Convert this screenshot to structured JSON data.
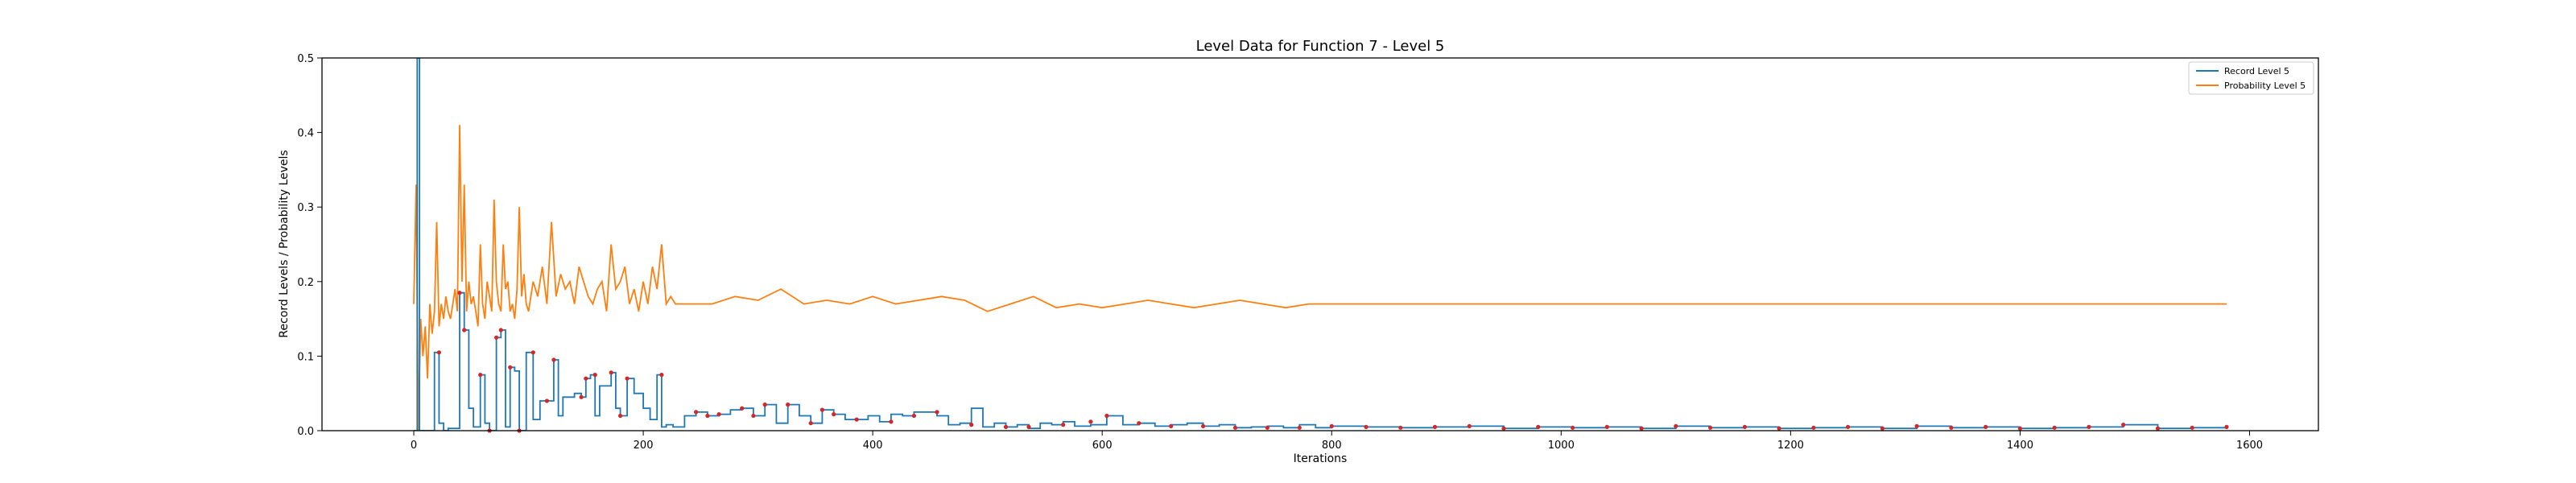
{
  "chart_data": {
    "type": "line",
    "title": "Level Data for Function 7 - Level 5",
    "xlabel": "Iterations",
    "ylabel": "Record Levels / Probability Levels",
    "xlim": [
      -80,
      1660
    ],
    "ylim": [
      0,
      0.5
    ],
    "xticks": [
      0,
      200,
      400,
      600,
      800,
      1000,
      1200,
      1400,
      1600
    ],
    "yticks": [
      0.0,
      0.1,
      0.2,
      0.3,
      0.4,
      0.5
    ],
    "xtick_labels": [
      "0",
      "200",
      "400",
      "600",
      "800",
      "1000",
      "1200",
      "1400",
      "1600"
    ],
    "ytick_labels": [
      "0.0",
      "0.1",
      "0.2",
      "0.3",
      "0.4",
      "0.5"
    ],
    "grid": false,
    "legend_position": "top-right",
    "legend": [
      "Record Level 5",
      "Probability Level 5"
    ],
    "colors": {
      "record": "#1f77b4",
      "probability": "#ff7f0e",
      "marker": "#d62728"
    },
    "series": [
      {
        "name": "Record Level 5",
        "color": "#1f77b4",
        "step": true,
        "x": [
          0,
          3,
          5,
          8,
          18,
          22,
          26,
          30,
          40,
          44,
          48,
          52,
          58,
          62,
          66,
          72,
          76,
          80,
          84,
          88,
          92,
          98,
          104,
          110,
          116,
          122,
          126,
          130,
          134,
          140,
          146,
          150,
          154,
          158,
          162,
          168,
          172,
          176,
          180,
          186,
          192,
          196,
          200,
          206,
          212,
          216,
          220,
          226,
          236,
          246,
          256,
          266,
          276,
          286,
          296,
          306,
          316,
          326,
          336,
          346,
          356,
          366,
          376,
          386,
          396,
          406,
          416,
          426,
          436,
          446,
          456,
          466,
          476,
          486,
          496,
          506,
          516,
          526,
          536,
          546,
          556,
          566,
          576,
          590,
          604,
          618,
          632,
          646,
          660,
          674,
          688,
          702,
          716,
          730,
          744,
          758,
          772,
          786,
          800,
          830,
          860,
          890,
          920,
          950,
          980,
          1010,
          1040,
          1070,
          1100,
          1130,
          1160,
          1190,
          1220,
          1250,
          1280,
          1310,
          1340,
          1370,
          1400,
          1430,
          1460,
          1490,
          1520,
          1550,
          1580
        ],
        "y": [
          0,
          0.5,
          0.0,
          0.0,
          0.105,
          0.01,
          0.0,
          0.003,
          0.185,
          0.135,
          0.03,
          0.005,
          0.075,
          0.01,
          0.0,
          0.125,
          0.135,
          0.005,
          0.085,
          0.08,
          0.0,
          0.105,
          0.015,
          0.04,
          0.04,
          0.095,
          0.02,
          0.045,
          0.045,
          0.05,
          0.045,
          0.07,
          0.075,
          0.02,
          0.06,
          0.06,
          0.078,
          0.03,
          0.02,
          0.07,
          0.05,
          0.05,
          0.03,
          0.015,
          0.075,
          0.005,
          0.008,
          0.005,
          0.02,
          0.025,
          0.02,
          0.022,
          0.028,
          0.03,
          0.02,
          0.035,
          0.01,
          0.035,
          0.02,
          0.01,
          0.028,
          0.022,
          0.015,
          0.015,
          0.02,
          0.012,
          0.022,
          0.02,
          0.025,
          0.025,
          0.02,
          0.008,
          0.01,
          0.03,
          0.005,
          0.01,
          0.005,
          0.008,
          0.003,
          0.01,
          0.008,
          0.012,
          0.006,
          0.008,
          0.02,
          0.008,
          0.01,
          0.006,
          0.008,
          0.01,
          0.006,
          0.008,
          0.004,
          0.005,
          0.006,
          0.004,
          0.008,
          0.004,
          0.006,
          0.005,
          0.004,
          0.005,
          0.006,
          0.003,
          0.005,
          0.004,
          0.005,
          0.003,
          0.006,
          0.004,
          0.005,
          0.003,
          0.004,
          0.005,
          0.003,
          0.006,
          0.004,
          0.005,
          0.003,
          0.004,
          0.005,
          0.008,
          0.003,
          0.004,
          0.005
        ]
      },
      {
        "name": "Probability Level 5",
        "color": "#ff7f0e",
        "x": [
          0,
          2,
          4,
          6,
          8,
          10,
          12,
          14,
          16,
          18,
          20,
          22,
          24,
          26,
          28,
          30,
          32,
          34,
          36,
          38,
          40,
          42,
          44,
          46,
          48,
          50,
          52,
          54,
          56,
          58,
          60,
          62,
          64,
          66,
          68,
          70,
          72,
          74,
          76,
          78,
          80,
          82,
          84,
          86,
          88,
          90,
          92,
          94,
          96,
          98,
          100,
          104,
          108,
          112,
          116,
          120,
          124,
          128,
          132,
          136,
          140,
          144,
          148,
          152,
          156,
          160,
          164,
          168,
          172,
          176,
          180,
          184,
          188,
          192,
          196,
          200,
          204,
          208,
          212,
          216,
          220,
          224,
          228,
          240,
          260,
          280,
          300,
          320,
          340,
          360,
          380,
          400,
          420,
          440,
          460,
          480,
          500,
          520,
          540,
          560,
          580,
          600,
          620,
          640,
          660,
          680,
          700,
          720,
          740,
          760,
          780,
          800,
          850,
          900,
          950,
          1000,
          1050,
          1100,
          1150,
          1200,
          1250,
          1300,
          1350,
          1400,
          1450,
          1500,
          1550,
          1580
        ],
        "y": [
          0.17,
          0.33,
          0.0,
          0.15,
          0.1,
          0.14,
          0.07,
          0.17,
          0.13,
          0.16,
          0.28,
          0.14,
          0.17,
          0.15,
          0.18,
          0.16,
          0.15,
          0.17,
          0.19,
          0.16,
          0.41,
          0.2,
          0.33,
          0.16,
          0.2,
          0.17,
          0.18,
          0.16,
          0.14,
          0.25,
          0.17,
          0.15,
          0.2,
          0.18,
          0.16,
          0.31,
          0.2,
          0.17,
          0.16,
          0.25,
          0.19,
          0.2,
          0.16,
          0.17,
          0.15,
          0.19,
          0.3,
          0.18,
          0.21,
          0.17,
          0.16,
          0.2,
          0.18,
          0.22,
          0.17,
          0.28,
          0.18,
          0.21,
          0.19,
          0.2,
          0.17,
          0.22,
          0.2,
          0.18,
          0.17,
          0.19,
          0.2,
          0.16,
          0.25,
          0.19,
          0.2,
          0.22,
          0.17,
          0.19,
          0.16,
          0.2,
          0.17,
          0.22,
          0.19,
          0.25,
          0.17,
          0.18,
          0.17,
          0.17,
          0.17,
          0.18,
          0.175,
          0.19,
          0.17,
          0.175,
          0.17,
          0.18,
          0.17,
          0.175,
          0.18,
          0.175,
          0.16,
          0.17,
          0.18,
          0.165,
          0.17,
          0.165,
          0.17,
          0.175,
          0.17,
          0.165,
          0.17,
          0.175,
          0.17,
          0.165,
          0.17,
          0.17,
          0.17,
          0.17,
          0.17,
          0.17,
          0.17,
          0.17,
          0.17,
          0.17,
          0.17,
          0.17,
          0.17,
          0.17,
          0.17,
          0.17,
          0.17,
          0.17
        ]
      }
    ],
    "markers": {
      "name": "Record points",
      "x": [
        22,
        40,
        44,
        58,
        66,
        72,
        76,
        84,
        92,
        104,
        116,
        122,
        146,
        150,
        158,
        172,
        180,
        186,
        216,
        246,
        256,
        266,
        286,
        296,
        306,
        326,
        346,
        356,
        366,
        386,
        416,
        436,
        456,
        486,
        516,
        536,
        566,
        590,
        604,
        632,
        660,
        688,
        716,
        744,
        772,
        800,
        830,
        860,
        890,
        920,
        950,
        980,
        1010,
        1040,
        1070,
        1100,
        1130,
        1160,
        1190,
        1220,
        1250,
        1280,
        1310,
        1340,
        1370,
        1400,
        1430,
        1460,
        1490,
        1520,
        1550,
        1580
      ],
      "y": [
        0.105,
        0.185,
        0.135,
        0.075,
        0.0,
        0.125,
        0.135,
        0.085,
        0.0,
        0.105,
        0.04,
        0.095,
        0.045,
        0.07,
        0.075,
        0.078,
        0.02,
        0.07,
        0.075,
        0.025,
        0.02,
        0.022,
        0.03,
        0.02,
        0.035,
        0.035,
        0.01,
        0.028,
        0.022,
        0.015,
        0.012,
        0.02,
        0.025,
        0.008,
        0.005,
        0.005,
        0.008,
        0.012,
        0.02,
        0.01,
        0.006,
        0.006,
        0.004,
        0.004,
        0.004,
        0.006,
        0.005,
        0.004,
        0.005,
        0.006,
        0.003,
        0.005,
        0.004,
        0.005,
        0.003,
        0.006,
        0.004,
        0.005,
        0.003,
        0.004,
        0.005,
        0.003,
        0.006,
        0.004,
        0.005,
        0.003,
        0.004,
        0.005,
        0.008,
        0.003,
        0.004,
        0.005
      ]
    }
  }
}
